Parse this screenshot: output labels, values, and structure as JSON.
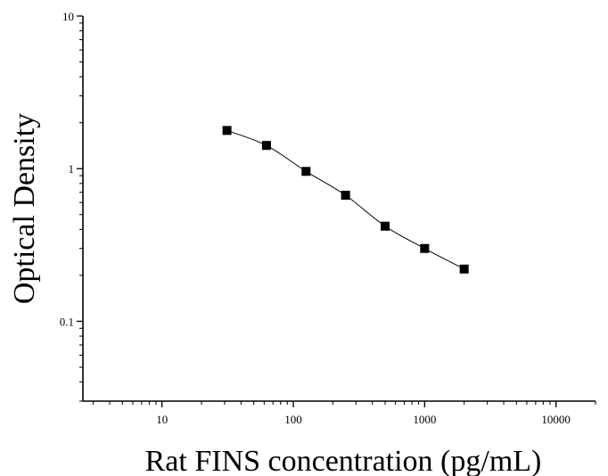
{
  "chart_data": {
    "type": "scatter",
    "xlabel": "Rat FINS concentration (pg/mL)",
    "ylabel": "Optical Density",
    "x_scale": "log",
    "y_scale": "log",
    "xlim": [
      2.5,
      20000
    ],
    "ylim": [
      0.03,
      10
    ],
    "x_ticks": [
      10,
      100,
      1000,
      10000
    ],
    "x_tick_labels": [
      "10",
      "100",
      "1000",
      "10000"
    ],
    "y_ticks": [
      0.1,
      1,
      10
    ],
    "y_tick_labels": [
      "0.1",
      "1",
      "10"
    ],
    "grid": false,
    "series": [
      {
        "x": [
          31.25,
          62.5,
          125,
          250,
          500,
          1000,
          2000
        ],
        "y": [
          1.78,
          1.42,
          0.96,
          0.67,
          0.42,
          0.3,
          0.22
        ],
        "marker": "square",
        "fit": "4PL curve",
        "color": "#000000"
      }
    ]
  }
}
